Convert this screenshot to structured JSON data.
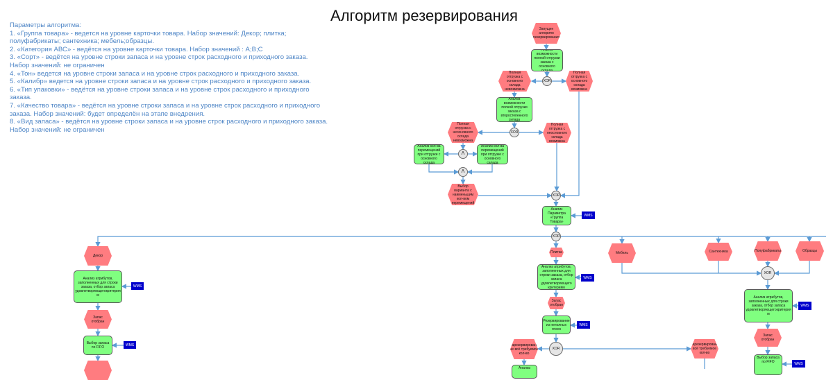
{
  "title": "Алгоритм резервирования",
  "parameters": {
    "heading": "Параметры алгоритма:",
    "lines": [
      "1.   «Группа товара» - ведется на уровне карточки товара. Набор значений: Декор; плитка; полуфабрикаты; сантехника; мебель;образцы.",
      "2. «Категория АВС» - ведётся на уровне карточки товара. Набор значений : А;В;С",
      "3. «Сорт» - ведётся на уровне строки запаса и на уровне строк расходного и приходного заказа. Набор значений: не ограничен",
      "4. «Тон» ведется на уровне строки запаса и на уровне строк расходного и приходного заказа.",
      "5. «Калибр» ведется на уровне строки запаса и на уровне строк расходного и приходного заказа.",
      "6. «Тип упаковки» - ведётся на уровне строки запаса и на уровне строк расходного и приходного заказа.",
      "7. «Качество товара» - ведётся на уровне строки запаса и на уровне строк расходного и приходного заказа. Набор значений: будет определён на этапе внедрения.",
      "8. «Вид запаса» - ведётся на уровне строки запаса и на уровне строк расходного и приходного заказа. Набор значений: не ограничен"
    ]
  },
  "colors": {
    "event": "#ff7c80",
    "function": "#80ff80",
    "connector": "#5b9bd5",
    "system": "#0000cc",
    "text": "#4f86c6"
  },
  "labels": {
    "xor": "XOR",
    "and": "Λ",
    "wms": "WMS"
  },
  "nodes": {
    "start": "Запущен алгоритм резервирования",
    "check_main": "Анализ возможности полной отгрузки заказа с основного склада",
    "main_impossible": "Полная отгрузка с основного склада невозможна",
    "main_possible": "Полная отгрузка с основного склада возможна",
    "check_secondary": "Анализ возможности полной отгрузки заказа с второстепенного склада",
    "sec_impossible": "Полная отгрузка с неосновного склада невозможна",
    "sec_possible": "Полная отгрузка с неосновного склада возможна",
    "moves_left": "Анализ кол-ва перемещений при отгрузке с основного склада",
    "moves_right": "Анализ кол-ва перемещений при отгрузке с основного склада",
    "min_moves": "Выбор варианта с наименьшим кол-вом перемещений",
    "group_analysis": "Анализ Параметра «Группа Товара»",
    "decor": "Декор",
    "decor_attr": "Анализ атрибутов, заполненных для строки заказа, отбор запаса удовлетворяющегокритерия м",
    "decor_selected": "Запас отобран",
    "decor_fifo": "Выбор запаса по FIFO",
    "tile": "Плитка",
    "tile_attr": "Анализ атрибутов, заполненных для строки заказа, отбор запаса удовлетворяющего критериям",
    "tile_selected": "Запас отобран",
    "tile_reserve": "Резервирование из неполных ячеек",
    "tile_partial": "Зарезервировано не всё требуемое кол-во",
    "tile_full": "Зарезервировано всё требуемое кол-во",
    "tile_next": "Анализ",
    "furniture": "Мебель",
    "plumbing": "Сантехника",
    "semi": "Полуфабрикаты",
    "samples": "Образцы",
    "other_attr": "Анализ атрибутов, заполненных для строки заказа, отбор запаса удовлетворяющегокритерия м",
    "other_selected": "Запас отобран",
    "other_fifo": "Выбор запаса по FIFO"
  }
}
